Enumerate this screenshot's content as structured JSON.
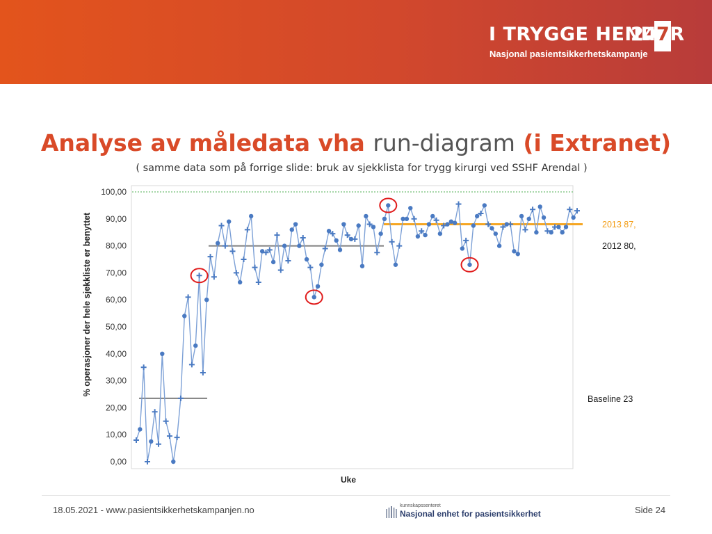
{
  "header": {
    "logo_title": "I TRYGGE HENDER",
    "logo_number_left": "24",
    "logo_number_right": "7",
    "logo_subtitle": "Nasjonal pasientsikkerhetskampanje"
  },
  "slide": {
    "title_part1": "Analyse av måledata vha",
    "title_part2": "run-diagram",
    "title_part3": "(i Extranet)",
    "subtitle": "( samme data som på forrige slide: bruk av sjekklista for trygg kirurgi ved SSHF Arendal )"
  },
  "chart_data": {
    "type": "line",
    "ylabel": "% operasjoner der hele sjekkliste er benyttet",
    "xlabel": "Uke",
    "ylim": [
      0,
      100
    ],
    "yticks": [
      "0,00",
      "10,00",
      "20,00",
      "30,00",
      "40,00",
      "50,00",
      "60,00",
      "70,00",
      "80,00",
      "90,00",
      "100,00"
    ],
    "grid": false,
    "values": [
      8,
      12,
      35,
      0,
      7.5,
      18.5,
      6.5,
      40,
      15,
      9.5,
      0,
      9,
      23.5,
      54,
      61,
      36,
      43,
      69,
      33,
      60,
      76,
      68.5,
      81,
      87.5,
      80,
      89,
      78,
      70,
      66.5,
      75,
      86,
      91,
      72,
      66.5,
      78,
      77.5,
      78.5,
      74,
      84,
      71,
      80,
      74.5,
      86,
      88,
      80,
      83,
      75,
      72,
      61,
      65,
      73,
      79,
      85.5,
      84.5,
      82,
      78.5,
      88,
      84,
      82.5,
      82.5,
      87.5,
      72.5,
      91,
      88,
      87,
      77.5,
      84.5,
      90,
      95,
      81.5,
      73,
      80,
      90,
      90,
      94,
      90,
      83.5,
      85.5,
      84,
      88,
      91,
      89.5,
      84.5,
      87.5,
      88,
      89,
      88.5,
      95.5,
      79,
      82,
      73,
      87.5,
      91,
      92,
      95,
      88,
      86.5,
      84.5,
      80,
      87,
      88,
      88,
      78,
      77,
      91,
      86,
      90,
      93.5,
      85,
      94.5,
      90.5,
      85.5,
      85,
      87,
      87,
      85,
      87,
      93.5,
      90.5,
      93
    ],
    "reference_lines": [
      {
        "label": "Baseline 23",
        "value": 23.5,
        "color": "#7f7f7f"
      },
      {
        "label": "2012 80,",
        "value": 80,
        "color": "#7f7f7f"
      },
      {
        "label": "2013 87,",
        "value": 88,
        "color": "#f5a623"
      },
      {
        "label": "",
        "value": 100,
        "color": "#4caf50"
      }
    ],
    "highlighted_points": [
      17,
      48,
      68,
      90
    ],
    "colors": {
      "line": "#7ca0d6",
      "marker": "#4a7ac2",
      "highlight": "#e01b1b",
      "baseline_label": "#1a1a1a",
      "label_2013": "#f39c12"
    }
  },
  "footer": {
    "date_url": "18.05.2021 - www.pasientsikkerhetskampanjen.no",
    "logo_small": "kunnskapssenteret",
    "logo_main": "Nasjonal enhet for pasientsikkerhet",
    "page": "Side 24"
  }
}
